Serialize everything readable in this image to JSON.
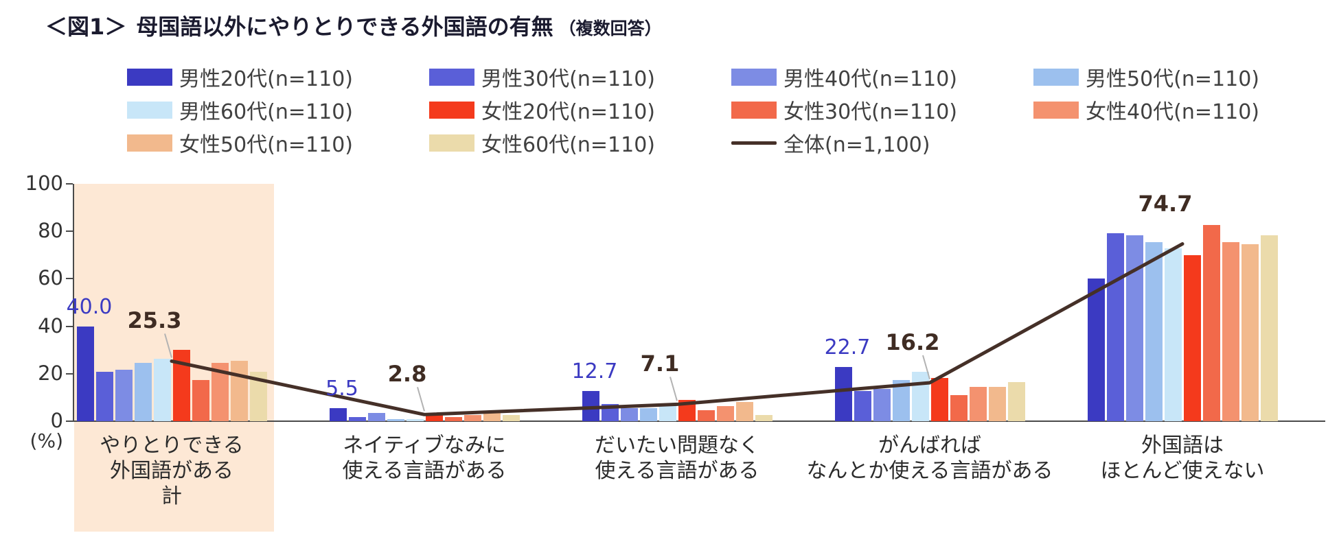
{
  "header": {
    "figure_label": "＜図1＞",
    "title": "母国語以外にやりとりできる外国語の有無",
    "subtitle": "（複数回答）"
  },
  "chart_data": {
    "type": "bar",
    "overlay": "line",
    "unit": "(%)",
    "ylim": [
      0,
      100
    ],
    "yticks": [
      0,
      20,
      40,
      60,
      80,
      100
    ],
    "grid": false,
    "legend_position": "top",
    "categories": [
      [
        "やりとりできる",
        "外国語がある",
        "計"
      ],
      [
        "ネイティブなみに",
        "使える言語がある"
      ],
      [
        "だいたい問題なく",
        "使える言語がある"
      ],
      [
        "がんばれば",
        "なんとか使える言語がある"
      ],
      [
        "外国語は",
        "ほとんど使えない"
      ]
    ],
    "series": [
      {
        "name": "男性20代(n=110)",
        "color": "#3b3ac2",
        "values": [
          40.0,
          5.5,
          12.7,
          22.7,
          60.0
        ]
      },
      {
        "name": "男性30代(n=110)",
        "color": "#5a5fd8",
        "values": [
          20.9,
          1.8,
          7.3,
          12.7,
          79.1
        ]
      },
      {
        "name": "男性40代(n=110)",
        "color": "#7d8ce4",
        "values": [
          21.8,
          3.6,
          5.5,
          13.6,
          78.2
        ]
      },
      {
        "name": "男性50代(n=110)",
        "color": "#9cc0ee",
        "values": [
          24.5,
          0.9,
          5.5,
          17.3,
          75.5
        ]
      },
      {
        "name": "男性60代(n=110)",
        "color": "#c8e6f8",
        "values": [
          26.4,
          0.9,
          7.3,
          20.9,
          72.7
        ]
      },
      {
        "name": "女性20代(n=110)",
        "color": "#f43a1c",
        "values": [
          30.0,
          3.6,
          9.1,
          18.2,
          70.0
        ]
      },
      {
        "name": "女性30代(n=110)",
        "color": "#f2694a",
        "values": [
          17.3,
          1.8,
          4.5,
          10.9,
          82.7
        ]
      },
      {
        "name": "女性40代(n=110)",
        "color": "#f4926f",
        "values": [
          24.5,
          2.7,
          6.4,
          14.5,
          75.5
        ]
      },
      {
        "name": "女性50代(n=110)",
        "color": "#f2b98d",
        "values": [
          25.5,
          3.6,
          8.2,
          14.5,
          74.5
        ]
      },
      {
        "name": "女性60代(n=110)",
        "color": "#ebdbab",
        "values": [
          20.9,
          2.7,
          2.7,
          16.4,
          78.2
        ]
      }
    ],
    "line_series": {
      "name": "全体(n=1,100)",
      "color": "#453028",
      "values": [
        25.3,
        2.8,
        7.1,
        16.2,
        74.7
      ]
    },
    "data_labels": {
      "series0": [
        40.0,
        5.5,
        12.7,
        22.7,
        null
      ],
      "overall": [
        25.3,
        2.8,
        7.1,
        16.2,
        74.7
      ]
    },
    "highlight": {
      "category_index": 0,
      "color": "#fde8d5"
    },
    "colors": {
      "axis": "#4a4a4a",
      "tick_label": "#333333",
      "category_label": "#2b2b2b",
      "overall_label": "#3f2c23",
      "leader": "#b3b3b3"
    }
  }
}
